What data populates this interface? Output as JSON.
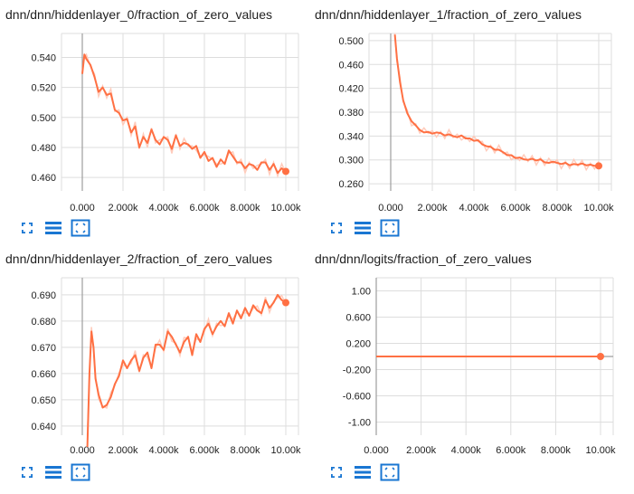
{
  "colors": {
    "line": "#ff7043",
    "line_light": "#ffccbc",
    "accent_icon": "#1976d2",
    "grid": "#dddddd",
    "axis": "#9e9e9e"
  },
  "icons": {
    "expand": "expand-icon",
    "data_selector": "data-selector-icon",
    "fit_domain": "fit-domain-icon"
  },
  "chart_data": [
    {
      "type": "line",
      "title": "dnn/dnn/hiddenlayer_0/fraction_of_zero_values",
      "xlim": [
        0,
        10000
      ],
      "ylim": [
        0.451,
        0.556
      ],
      "yticks": [
        0.46,
        0.48,
        0.5,
        0.52,
        0.54
      ],
      "ytick_labels": [
        "0.460",
        "0.480",
        "0.500",
        "0.520",
        "0.540"
      ],
      "xticks": [
        0,
        2000,
        4000,
        6000,
        8000,
        10000
      ],
      "xtick_labels": [
        "0.000",
        "2.000k",
        "4.000k",
        "6.000k",
        "8.000k",
        "10.00k"
      ],
      "series": [
        {
          "x": [
            0,
            100,
            200,
            400,
            600,
            800,
            1000,
            1200,
            1400,
            1600,
            1800,
            2000,
            2200,
            2400,
            2600,
            2800,
            3000,
            3200,
            3400,
            3600,
            3800,
            4000,
            4200,
            4400,
            4600,
            4800,
            5000,
            5200,
            5400,
            5600,
            5800,
            6000,
            6200,
            6400,
            6600,
            6800,
            7000,
            7200,
            7400,
            7600,
            7800,
            8000,
            8200,
            8400,
            8600,
            8800,
            9000,
            9200,
            9400,
            9600,
            9800,
            10000
          ],
          "y": [
            0.529,
            0.542,
            0.539,
            0.535,
            0.527,
            0.517,
            0.52,
            0.515,
            0.516,
            0.505,
            0.503,
            0.498,
            0.499,
            0.49,
            0.494,
            0.48,
            0.487,
            0.483,
            0.492,
            0.485,
            0.482,
            0.487,
            0.485,
            0.479,
            0.488,
            0.481,
            0.483,
            0.482,
            0.479,
            0.481,
            0.473,
            0.477,
            0.471,
            0.473,
            0.467,
            0.472,
            0.469,
            0.478,
            0.474,
            0.47,
            0.47,
            0.466,
            0.469,
            0.468,
            0.465,
            0.47,
            0.47,
            0.465,
            0.469,
            0.463,
            0.466,
            0.464
          ]
        }
      ]
    },
    {
      "type": "line",
      "title": "dnn/dnn/hiddenlayer_1/fraction_of_zero_values",
      "xlim": [
        0,
        10000
      ],
      "ylim": [
        0.248,
        0.512
      ],
      "yticks": [
        0.26,
        0.3,
        0.34,
        0.38,
        0.42,
        0.46,
        0.5
      ],
      "ytick_labels": [
        "0.260",
        "0.300",
        "0.340",
        "0.380",
        "0.420",
        "0.460",
        "0.500"
      ],
      "xticks": [
        0,
        2000,
        4000,
        6000,
        8000,
        10000
      ],
      "xtick_labels": [
        "0.000",
        "2.000k",
        "4.000k",
        "6.000k",
        "8.000k",
        "10.00k"
      ],
      "series": [
        {
          "x": [
            200,
            300,
            450,
            600,
            800,
            1000,
            1200,
            1400,
            1600,
            1800,
            2000,
            2200,
            2400,
            2600,
            2800,
            3000,
            3200,
            3400,
            3600,
            3800,
            4000,
            4200,
            4400,
            4600,
            4800,
            5000,
            5200,
            5400,
            5600,
            5800,
            6000,
            6200,
            6400,
            6600,
            6800,
            7000,
            7200,
            7400,
            7600,
            7800,
            8000,
            8200,
            8400,
            8600,
            8800,
            9000,
            9200,
            9400,
            9600,
            9800,
            10000
          ],
          "y": [
            0.51,
            0.47,
            0.43,
            0.4,
            0.378,
            0.365,
            0.358,
            0.35,
            0.346,
            0.347,
            0.344,
            0.346,
            0.345,
            0.341,
            0.343,
            0.34,
            0.338,
            0.341,
            0.336,
            0.336,
            0.332,
            0.333,
            0.326,
            0.323,
            0.322,
            0.317,
            0.317,
            0.313,
            0.308,
            0.308,
            0.303,
            0.304,
            0.301,
            0.3,
            0.302,
            0.299,
            0.301,
            0.296,
            0.295,
            0.297,
            0.295,
            0.293,
            0.295,
            0.291,
            0.293,
            0.292,
            0.294,
            0.291,
            0.292,
            0.29,
            0.29
          ]
        }
      ]
    },
    {
      "type": "line",
      "title": "dnn/dnn/hiddenlayer_2/fraction_of_zero_values",
      "xlim": [
        0,
        10000
      ],
      "ylim": [
        0.6365,
        0.6965
      ],
      "yticks": [
        0.64,
        0.65,
        0.66,
        0.67,
        0.68,
        0.69
      ],
      "ytick_labels": [
        "0.640",
        "0.650",
        "0.660",
        "0.670",
        "0.680",
        "0.690"
      ],
      "xticks": [
        0,
        2000,
        4000,
        6000,
        8000,
        10000
      ],
      "xtick_labels": [
        "0.000",
        "2.000k",
        "4.000k",
        "6.000k",
        "8.000k",
        "10.00k"
      ],
      "series": [
        {
          "x": [
            250,
            350,
            450,
            550,
            650,
            800,
            1000,
            1200,
            1400,
            1600,
            1800,
            2000,
            2200,
            2400,
            2600,
            2800,
            3000,
            3200,
            3400,
            3600,
            3800,
            4000,
            4200,
            4400,
            4600,
            4800,
            5000,
            5200,
            5400,
            5600,
            5800,
            6000,
            6200,
            6400,
            6600,
            6800,
            7000,
            7200,
            7400,
            7600,
            7800,
            8000,
            8200,
            8400,
            8600,
            8800,
            9000,
            9200,
            9400,
            9600,
            9800,
            10000
          ],
          "y": [
            0.632,
            0.66,
            0.676,
            0.67,
            0.658,
            0.652,
            0.647,
            0.648,
            0.651,
            0.656,
            0.659,
            0.665,
            0.662,
            0.665,
            0.667,
            0.661,
            0.666,
            0.668,
            0.662,
            0.671,
            0.671,
            0.669,
            0.676,
            0.674,
            0.671,
            0.668,
            0.672,
            0.674,
            0.667,
            0.675,
            0.672,
            0.677,
            0.679,
            0.675,
            0.678,
            0.68,
            0.678,
            0.683,
            0.679,
            0.684,
            0.681,
            0.685,
            0.682,
            0.686,
            0.684,
            0.683,
            0.688,
            0.685,
            0.687,
            0.69,
            0.688,
            0.687
          ]
        }
      ]
    },
    {
      "type": "line",
      "title": "dnn/dnn/logits/fraction_of_zero_values",
      "xlim": [
        0,
        10000
      ],
      "ylim": [
        -1.2,
        1.2
      ],
      "yticks": [
        -1.0,
        -0.6,
        -0.2,
        0.2,
        0.6,
        1.0
      ],
      "ytick_labels": [
        "-1.00",
        "-0.600",
        "-0.200",
        "0.200",
        "0.600",
        "1.00"
      ],
      "xticks": [
        0,
        2000,
        4000,
        6000,
        8000,
        10000
      ],
      "xtick_labels": [
        "0.000",
        "2.000k",
        "4.000k",
        "6.000k",
        "8.000k",
        "10.00k"
      ],
      "series": [
        {
          "x": [
            0,
            10000
          ],
          "y": [
            0,
            0
          ]
        }
      ]
    }
  ]
}
